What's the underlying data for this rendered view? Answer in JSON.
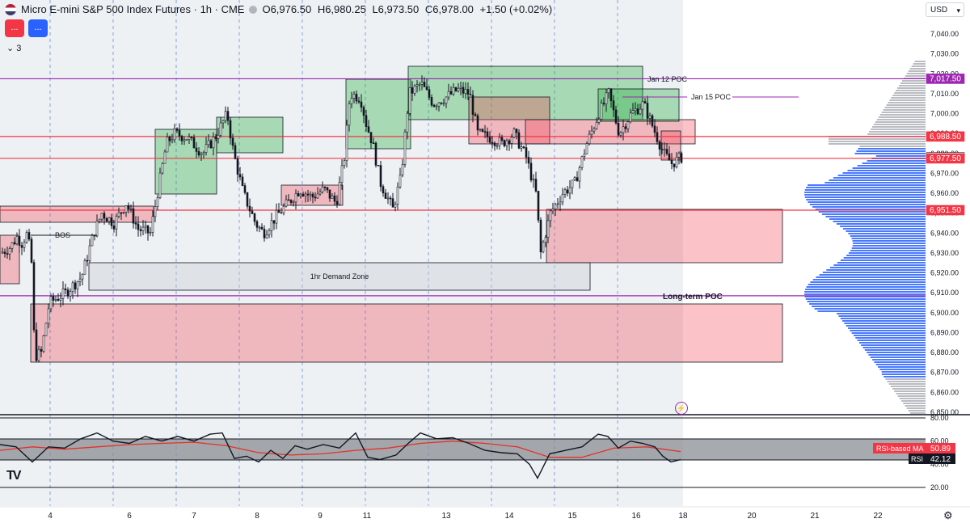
{
  "header": {
    "symbol_title": "Micro E-mini S&P 500 Index Futures · 1h · CME",
    "open": "O6,976.50",
    "high": "H6,980.25",
    "low": "L6,973.50",
    "close": "C6,978.00",
    "change": "+1.50 (+0.02%)",
    "sell_label": "...",
    "buy_label": "...",
    "indicators_label": "⌄ 3"
  },
  "currency": "USD",
  "price_axis": {
    "ticks": [
      "7,040.00",
      "7,030.00",
      "7,020.00",
      "7,010.00",
      "7,000.00",
      "6,990.00",
      "6,980.00",
      "6,970.00",
      "6,960.00",
      "6,950.00",
      "6,940.00",
      "6,930.00",
      "6,920.00",
      "6,910.00",
      "6,900.00",
      "6,890.00",
      "6,880.00",
      "6,870.00",
      "6,860.00",
      "6,850.00"
    ],
    "labels": [
      {
        "text": "7,017.50",
        "color": "#9c27b0"
      },
      {
        "text": "6,988.50",
        "color": "#f23645"
      },
      {
        "text": "6,978.00",
        "color": "#ffffff"
      },
      {
        "text": "6,977.50",
        "color": "#f23645"
      },
      {
        "text": "6,951.50",
        "color": "#f23645"
      }
    ]
  },
  "rsi_axis": {
    "ticks": [
      "80.00",
      "60.00",
      "40.00",
      "20.00"
    ]
  },
  "time_axis": [
    "4",
    "6",
    "7",
    "8",
    "9",
    "11",
    "13",
    "14",
    "15",
    "16",
    "18",
    "20",
    "21",
    "22"
  ],
  "annotations": {
    "bos": "BOS",
    "demand_zone": "1hr Demand Zone",
    "jan12_poc": "Jan 12 POC",
    "jan15_poc": "Jan 15 POC",
    "long_term_poc": "Long-term POC"
  },
  "rsi": {
    "ma_label": "RSI-based MA",
    "ma_value": "50.89",
    "rsi_label": "RSI",
    "rsi_value": "42.12"
  },
  "chart_data": {
    "type": "candlestick",
    "timeframe": "1h",
    "price_range": [
      6850,
      7042
    ],
    "rsi_range": [
      15,
      82
    ],
    "colors": {
      "up": "#131722",
      "down": "#131722",
      "supply": "#f23645",
      "demand": "#22ab3c",
      "poc": "#9c27b0"
    },
    "horizontal_levels": [
      {
        "price": 7017.5,
        "color": "#9c27b0"
      },
      {
        "price": 6988.5,
        "color": "#f23645"
      },
      {
        "price": 6977.5,
        "color": "#f23645"
      },
      {
        "price": 6951.5,
        "color": "#f23645"
      },
      {
        "price": 6908.5,
        "color": "#9c27b0"
      }
    ],
    "price_path": [
      [
        0,
        6930
      ],
      [
        12,
        6933
      ],
      [
        20,
        6938
      ],
      [
        26,
        6935
      ],
      [
        33,
        6940
      ],
      [
        38,
        6925
      ],
      [
        42,
        6878
      ],
      [
        50,
        6880
      ],
      [
        60,
        6905
      ],
      [
        80,
        6910
      ],
      [
        100,
        6918
      ],
      [
        115,
        6940
      ],
      [
        125,
        6950
      ],
      [
        140,
        6945
      ],
      [
        155,
        6955
      ],
      [
        170,
        6942
      ],
      [
        185,
        6940
      ],
      [
        196,
        6965
      ],
      [
        205,
        6985
      ],
      [
        215,
        6990
      ],
      [
        230,
        6988
      ],
      [
        250,
        6980
      ],
      [
        265,
        6988
      ],
      [
        280,
        7000
      ],
      [
        288,
        6980
      ],
      [
        300,
        6960
      ],
      [
        315,
        6945
      ],
      [
        325,
        6940
      ],
      [
        340,
        6948
      ],
      [
        355,
        6955
      ],
      [
        370,
        6962
      ],
      [
        385,
        6958
      ],
      [
        400,
        6962
      ],
      [
        415,
        6955
      ],
      [
        425,
        6978
      ],
      [
        432,
        7010
      ],
      [
        445,
        7008
      ],
      [
        452,
        6995
      ],
      [
        460,
        6985
      ],
      [
        470,
        6965
      ],
      [
        485,
        6952
      ],
      [
        495,
        6968
      ],
      [
        505,
        7010
      ],
      [
        520,
        7015
      ],
      [
        535,
        7005
      ],
      [
        550,
        7008
      ],
      [
        565,
        7012
      ],
      [
        580,
        7010
      ],
      [
        590,
        6990
      ],
      [
        605,
        6988
      ],
      [
        620,
        6985
      ],
      [
        635,
        6990
      ],
      [
        650,
        6978
      ],
      [
        662,
        6960
      ],
      [
        668,
        6930
      ],
      [
        680,
        6950
      ],
      [
        695,
        6960
      ],
      [
        710,
        6965
      ],
      [
        725,
        6985
      ],
      [
        740,
        7000
      ],
      [
        752,
        7010
      ],
      [
        765,
        6990
      ],
      [
        780,
        7000
      ],
      [
        795,
        7005
      ],
      [
        810,
        6990
      ],
      [
        820,
        6980
      ],
      [
        830,
        6975
      ],
      [
        842,
        6978
      ]
    ],
    "rsi_path": [
      [
        0,
        57
      ],
      [
        20,
        55
      ],
      [
        40,
        42
      ],
      [
        60,
        55
      ],
      [
        80,
        54
      ],
      [
        100,
        62
      ],
      [
        120,
        67
      ],
      [
        140,
        60
      ],
      [
        160,
        58
      ],
      [
        180,
        64
      ],
      [
        200,
        60
      ],
      [
        220,
        64
      ],
      [
        240,
        60
      ],
      [
        260,
        66
      ],
      [
        275,
        67
      ],
      [
        290,
        45
      ],
      [
        305,
        47
      ],
      [
        320,
        42
      ],
      [
        335,
        52
      ],
      [
        350,
        45
      ],
      [
        365,
        56
      ],
      [
        380,
        53
      ],
      [
        400,
        57
      ],
      [
        420,
        54
      ],
      [
        440,
        67
      ],
      [
        455,
        46
      ],
      [
        470,
        44
      ],
      [
        490,
        48
      ],
      [
        505,
        58
      ],
      [
        520,
        67
      ],
      [
        540,
        62
      ],
      [
        560,
        63
      ],
      [
        580,
        58
      ],
      [
        600,
        52
      ],
      [
        620,
        50
      ],
      [
        640,
        49
      ],
      [
        655,
        40
      ],
      [
        665,
        28
      ],
      [
        680,
        49
      ],
      [
        700,
        52
      ],
      [
        720,
        55
      ],
      [
        740,
        66
      ],
      [
        752,
        64
      ],
      [
        765,
        54
      ],
      [
        780,
        60
      ],
      [
        795,
        58
      ],
      [
        810,
        55
      ],
      [
        820,
        47
      ],
      [
        830,
        42
      ],
      [
        842,
        44
      ]
    ],
    "rsi_ma_path": [
      [
        0,
        52
      ],
      [
        40,
        55
      ],
      [
        80,
        53
      ],
      [
        120,
        55
      ],
      [
        160,
        57
      ],
      [
        200,
        58
      ],
      [
        240,
        59
      ],
      [
        280,
        56
      ],
      [
        320,
        50
      ],
      [
        360,
        48
      ],
      [
        400,
        49
      ],
      [
        440,
        52
      ],
      [
        480,
        54
      ],
      [
        520,
        58
      ],
      [
        560,
        60
      ],
      [
        600,
        58
      ],
      [
        640,
        55
      ],
      [
        680,
        46
      ],
      [
        720,
        46
      ],
      [
        760,
        54
      ],
      [
        800,
        55
      ],
      [
        842,
        51
      ]
    ]
  }
}
